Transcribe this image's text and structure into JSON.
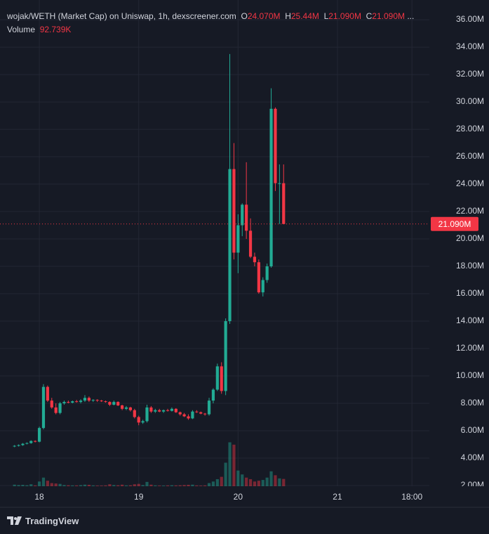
{
  "chart_data": {
    "type": "candlestick",
    "title": "wojak/WETH (Market Cap) on Uniswap, 1h, dexscreener.com",
    "ohlc_labels": {
      "o": "O",
      "h": "H",
      "l": "L",
      "c": "C",
      "o_value": "24.070M",
      "h_value": "25.44M",
      "l_value": "21.090M",
      "c_value": "21.090M",
      "more": "..."
    },
    "volume_label": "Volume",
    "volume_value_label": "92.739K",
    "last_price_label": "21.090M",
    "brand": "TradingView",
    "up_color": "#22ab94",
    "down_color": "#f23645",
    "x": [
      -6,
      -5,
      -4,
      -3,
      -2,
      -1,
      0,
      1,
      2,
      3,
      4,
      5,
      6,
      7,
      8,
      9,
      10,
      11,
      12,
      13,
      14,
      15,
      16,
      17,
      18,
      19,
      20,
      21,
      22,
      23,
      24,
      25,
      26,
      27,
      28,
      29,
      30,
      31,
      32,
      33,
      34,
      35,
      36,
      37,
      38,
      39,
      40,
      41,
      42,
      43,
      44,
      45,
      46,
      47,
      48,
      49,
      50,
      51,
      52,
      53,
      54,
      55,
      56,
      57,
      58,
      59
    ],
    "open": [
      4.85,
      4.9,
      4.95,
      5.05,
      5.1,
      5.25,
      5.2,
      6.2,
      9.2,
      8.2,
      7.7,
      7.3,
      8.0,
      8.1,
      8.05,
      8.15,
      8.1,
      8.2,
      8.4,
      8.2,
      8.25,
      8.2,
      8.15,
      8.1,
      7.9,
      8.1,
      7.85,
      7.6,
      7.7,
      7.5,
      7.0,
      6.6,
      6.7,
      7.7,
      7.4,
      7.5,
      7.4,
      7.5,
      7.45,
      7.6,
      7.35,
      7.2,
      7.05,
      6.9,
      7.4,
      7.35,
      7.25,
      7.2,
      8.2,
      9.0,
      10.7,
      8.9,
      14.0,
      25.1,
      19.0,
      21.0,
      22.5,
      20.6,
      18.7,
      18.3,
      16.1,
      17.0,
      18.0,
      29.5,
      24.07,
      24.07
    ],
    "high": [
      4.95,
      5.0,
      5.1,
      5.15,
      5.3,
      5.3,
      6.3,
      9.4,
      9.3,
      8.4,
      8.0,
      8.1,
      8.2,
      8.2,
      8.2,
      8.25,
      8.3,
      8.6,
      8.5,
      8.3,
      8.3,
      8.25,
      8.2,
      8.15,
      8.2,
      8.15,
      7.9,
      7.8,
      7.75,
      7.6,
      7.1,
      6.8,
      7.9,
      7.8,
      7.6,
      7.6,
      7.55,
      7.6,
      7.7,
      7.65,
      7.4,
      7.3,
      7.2,
      7.5,
      7.5,
      7.4,
      7.3,
      8.4,
      9.1,
      10.9,
      11.0,
      14.2,
      33.5,
      27.0,
      21.8,
      22.6,
      25.6,
      21.5,
      19.0,
      18.5,
      17.2,
      18.2,
      31.0,
      29.6,
      25.44,
      25.44
    ],
    "low": [
      4.8,
      4.85,
      4.9,
      5.0,
      5.05,
      5.15,
      5.15,
      6.1,
      8.1,
      7.6,
      7.2,
      7.2,
      7.9,
      8.0,
      8.0,
      8.05,
      8.0,
      8.1,
      8.1,
      8.1,
      8.1,
      8.1,
      8.05,
      7.8,
      7.85,
      7.8,
      7.5,
      7.5,
      7.4,
      6.9,
      6.4,
      6.5,
      6.6,
      7.3,
      7.3,
      7.35,
      7.3,
      7.4,
      7.4,
      7.3,
      7.1,
      7.0,
      6.8,
      6.85,
      7.3,
      7.2,
      7.1,
      7.1,
      8.0,
      8.9,
      8.7,
      8.6,
      13.8,
      18.5,
      17.5,
      20.2,
      20.0,
      18.6,
      18.0,
      16.0,
      15.8,
      16.8,
      17.9,
      23.5,
      21.09,
      21.09
    ],
    "close": [
      4.9,
      4.95,
      5.05,
      5.1,
      5.25,
      5.2,
      6.2,
      9.2,
      8.2,
      7.7,
      7.3,
      8.0,
      8.1,
      8.05,
      8.15,
      8.1,
      8.2,
      8.4,
      8.2,
      8.25,
      8.2,
      8.15,
      8.1,
      7.9,
      8.1,
      7.85,
      7.6,
      7.7,
      7.5,
      7.0,
      6.6,
      6.7,
      7.7,
      7.4,
      7.5,
      7.4,
      7.5,
      7.45,
      7.6,
      7.35,
      7.2,
      7.05,
      6.9,
      7.4,
      7.35,
      7.25,
      7.2,
      8.2,
      9.0,
      10.7,
      8.9,
      14.0,
      25.1,
      19.0,
      21.0,
      22.5,
      20.6,
      18.7,
      18.3,
      16.1,
      17.0,
      18.0,
      29.5,
      24.07,
      24.07,
      21.09
    ],
    "volume": [
      20,
      15,
      18,
      12,
      25,
      10,
      60,
      110,
      70,
      40,
      35,
      30,
      15,
      12,
      10,
      10,
      14,
      20,
      18,
      10,
      8,
      8,
      10,
      25,
      15,
      12,
      20,
      10,
      12,
      25,
      30,
      15,
      55,
      20,
      10,
      8,
      8,
      10,
      12,
      10,
      12,
      15,
      18,
      20,
      10,
      8,
      10,
      40,
      60,
      90,
      120,
      300,
      560,
      530,
      200,
      150,
      110,
      90,
      60,
      70,
      80,
      110,
      190,
      140,
      100,
      92.739
    ],
    "xlim": [
      -9.5,
      94.2
    ],
    "xticks": [
      {
        "value": 0,
        "label": "18"
      },
      {
        "value": 24,
        "label": "19"
      },
      {
        "value": 48,
        "label": "20"
      },
      {
        "value": 72,
        "label": "21"
      },
      {
        "value": 90,
        "label": "18:00"
      }
    ],
    "ylim": [
      1.95,
      37.44
    ],
    "yticks": [
      {
        "value": 2,
        "label": "2.00M"
      },
      {
        "value": 4,
        "label": "4.00M"
      },
      {
        "value": 6,
        "label": "6.00M"
      },
      {
        "value": 8,
        "label": "8.00M"
      },
      {
        "value": 10,
        "label": "10.00M"
      },
      {
        "value": 12,
        "label": "12.00M"
      },
      {
        "value": 14,
        "label": "14.00M"
      },
      {
        "value": 16,
        "label": "16.00M"
      },
      {
        "value": 18,
        "label": "18.00M"
      },
      {
        "value": 20,
        "label": "20.00M"
      },
      {
        "value": 22,
        "label": "22.00M"
      },
      {
        "value": 24,
        "label": "24.00M"
      },
      {
        "value": 26,
        "label": "26.00M"
      },
      {
        "value": 28,
        "label": "28.00M"
      },
      {
        "value": 30,
        "label": "30.00M"
      },
      {
        "value": 32,
        "label": "32.00M"
      },
      {
        "value": 34,
        "label": "34.00M"
      },
      {
        "value": 36,
        "label": "36.00M"
      }
    ],
    "y2lim": [
      0,
      6200
    ],
    "grid": true
  }
}
